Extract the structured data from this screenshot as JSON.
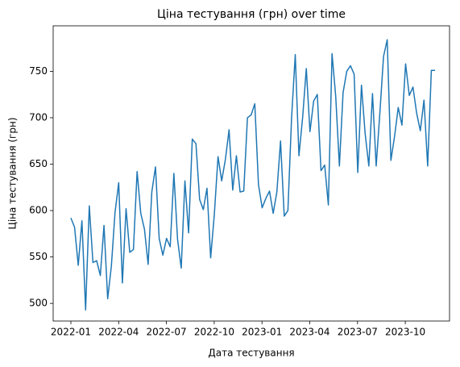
{
  "chart_data": {
    "type": "line",
    "title": "Ціна тестування (грн) over time",
    "xlabel": "Дата тестування",
    "ylabel": "Ціна тестування (грн)",
    "xticks": [
      "2022-01",
      "2022-04",
      "2022-07",
      "2022-10",
      "2023-01",
      "2023-04",
      "2023-07",
      "2023-10"
    ],
    "ylim": [
      481,
      799
    ],
    "yticks": [
      500,
      550,
      600,
      650,
      700,
      750
    ],
    "series": [
      {
        "name": "Ціна тестування (грн)",
        "color": "#1f77b4",
        "values": [
          592,
          582,
          541,
          589,
          493,
          605,
          544,
          546,
          530,
          584,
          505,
          540,
          598,
          630,
          522,
          602,
          555,
          558,
          642,
          597,
          580,
          542,
          620,
          647,
          570,
          552,
          570,
          561,
          640,
          569,
          538,
          632,
          576,
          677,
          672,
          612,
          601,
          624,
          549,
          596,
          658,
          632,
          655,
          687,
          622,
          659,
          620,
          621,
          700,
          703,
          715,
          628,
          603,
          613,
          621,
          597,
          620,
          675,
          594,
          600,
          700,
          768,
          659,
          700,
          753,
          685,
          718,
          725,
          643,
          649,
          606,
          769,
          723,
          648,
          727,
          750,
          756,
          747,
          641,
          735,
          683,
          648,
          726,
          648,
          705,
          766,
          784,
          654,
          680,
          711,
          692,
          758,
          724,
          733,
          705,
          686,
          719,
          648,
          751,
          751
        ]
      }
    ]
  }
}
